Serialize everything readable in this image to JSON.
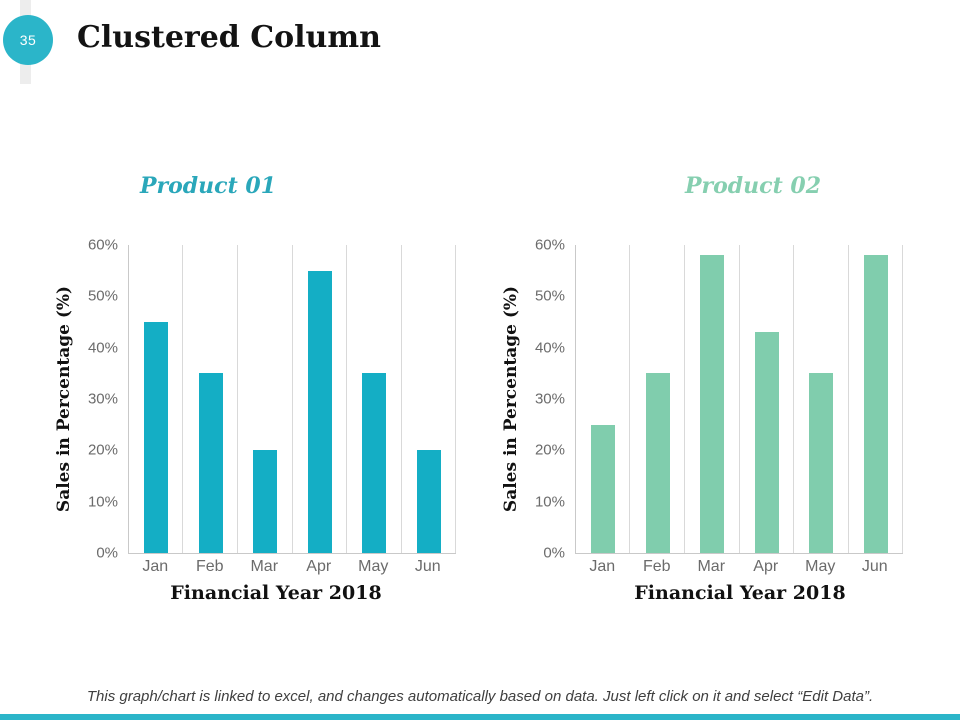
{
  "slide": {
    "number": "35",
    "title": "Clustered Column",
    "caption": "This graph/chart is linked to excel, and changes automatically based on data. Just left click on it and select “Edit Data”.",
    "accent_teal": "#2bb5c9"
  },
  "chart_data": [
    {
      "type": "bar",
      "title": "Product 01",
      "title_color": "#2aa7ba",
      "bar_color": "#14aec5",
      "categories": [
        "Jan",
        "Feb",
        "Mar",
        "Apr",
        "May",
        "Jun"
      ],
      "values": [
        45,
        35,
        20,
        55,
        35,
        20
      ],
      "xlabel": "Financial Year 2018",
      "ylabel": "Sales in Percentage (%)",
      "ylim": [
        0,
        60
      ],
      "ytick_step": 10,
      "ytick_labels": [
        "0%",
        "10%",
        "20%",
        "30%",
        "40%",
        "50%",
        "60%"
      ],
      "grid": "vertical",
      "legend": "none"
    },
    {
      "type": "bar",
      "title": "Product 02",
      "title_color": "#86cfb0",
      "bar_color": "#80cdad",
      "categories": [
        "Jan",
        "Feb",
        "Mar",
        "Apr",
        "May",
        "Jun"
      ],
      "values": [
        25,
        35,
        58,
        43,
        35,
        58
      ],
      "xlabel": "Financial Year 2018",
      "ylabel": "Sales in Percentage (%)",
      "ylim": [
        0,
        60
      ],
      "ytick_step": 10,
      "ytick_labels": [
        "0%",
        "10%",
        "20%",
        "30%",
        "40%",
        "50%",
        "60%"
      ],
      "grid": "vertical",
      "legend": "none"
    }
  ]
}
